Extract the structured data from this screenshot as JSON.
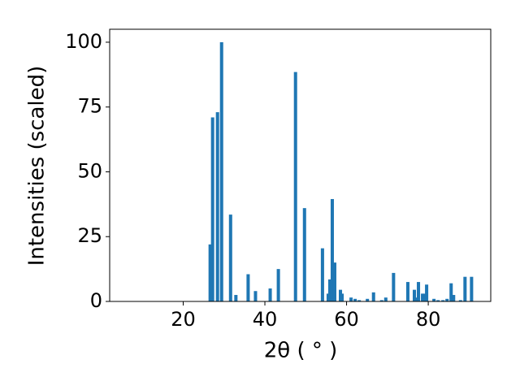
{
  "chart_data": {
    "type": "bar",
    "xlabel": "2θ ( ° )",
    "ylabel": "Intensities (scaled)",
    "color": "#1f77b4",
    "x": [
      26.6,
      27.2,
      28.4,
      29.4,
      31.6,
      32.9,
      35.9,
      37.7,
      41.3,
      43.3,
      47.5,
      49.7,
      54.1,
      55.5,
      55.9,
      56.5,
      57.1,
      58.5,
      58.9,
      61.1,
      62.1,
      63.1,
      65.1,
      66.6,
      68.6,
      69.6,
      71.5,
      75.0,
      76.6,
      77.0,
      77.6,
      78.6,
      78.9,
      79.6,
      81.4,
      82.4,
      83.6,
      84.6,
      85.6,
      86.2,
      87.9,
      89.0,
      90.6
    ],
    "values": [
      22,
      71,
      73,
      100,
      33.5,
      2.5,
      10.5,
      4,
      5,
      12.5,
      88.5,
      36,
      20.5,
      3,
      8.5,
      39.5,
      15,
      4.5,
      3,
      1.5,
      1,
      0.5,
      1,
      3.5,
      0.5,
      1.5,
      11,
      7.5,
      4.5,
      1.5,
      7.5,
      3,
      3,
      6.5,
      1,
      0.5,
      0.5,
      1,
      7,
      2.5,
      0.5,
      9.5,
      9.5
    ],
    "xlim": [
      2,
      95.3
    ],
    "ylim": [
      0,
      105
    ],
    "xticks": [
      20,
      40,
      60,
      80
    ],
    "yticks": [
      0,
      25,
      50,
      75,
      100
    ]
  }
}
